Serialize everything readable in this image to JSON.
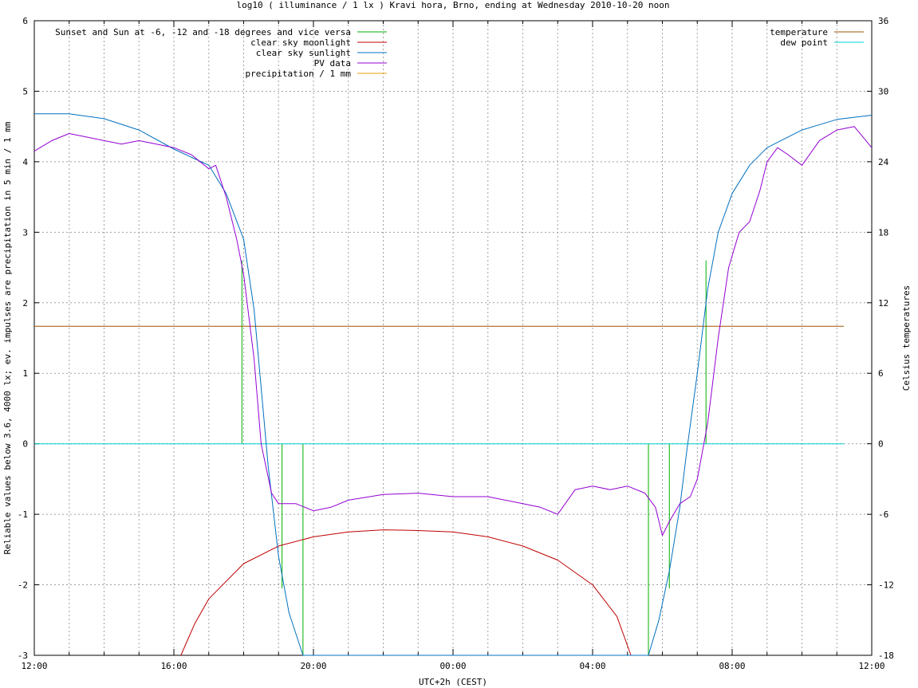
{
  "chart_data": {
    "type": "line",
    "title": "log10 ( illuminance / 1 lx ) Kravi hora, Brno, ending at Wednesday 2010-10-20 noon",
    "xlabel": "UTC+2h (CEST)",
    "ylabel_left": "Reliable values below 3.6, 4000 lx; ev. impulses are precipitation in 5 min / 1 mm",
    "ylabel_right": "Celsius temperatures",
    "x_tick_labels": [
      "12:00",
      "16:00",
      "20:00",
      "00:00",
      "04:00",
      "08:00",
      "12:00"
    ],
    "xlim_hours": [
      0,
      24
    ],
    "ylim_left": [
      -3,
      6
    ],
    "ylim_right": [
      -18,
      36
    ],
    "y_ticks_left": [
      "-3",
      "-2",
      "-1",
      "0",
      "1",
      "2",
      "3",
      "4",
      "5",
      "6"
    ],
    "y_ticks_right": [
      "-18",
      "-12",
      "-6",
      "0",
      "6",
      "12",
      "18",
      "24",
      "30",
      "36"
    ],
    "grid": true,
    "legend_left": [
      {
        "name": "Sunset and Sun at -6, -12 and -18 degrees and vice versa",
        "color": "#00b000"
      },
      {
        "name": "clear sky moonlight",
        "color": "#c00000"
      },
      {
        "name": "clear sky sunlight",
        "color": "#0070c0"
      },
      {
        "name": "PV data",
        "color": "#9400d3"
      },
      {
        "name": "precipitation / 1 mm",
        "color": "#e0a000"
      }
    ],
    "legend_right": [
      {
        "name": "temperature",
        "color": "#a05000"
      },
      {
        "name": "dew point",
        "color": "#00d0d0"
      }
    ],
    "sun_events": [
      {
        "hour": 5.95,
        "value": 2.6
      },
      {
        "hour": 7.1,
        "value": -2.05
      },
      {
        "hour": 7.7,
        "value": -3
      },
      {
        "hour": 17.6,
        "value": -3
      },
      {
        "hour": 18.2,
        "value": -2.05
      },
      {
        "hour": 19.25,
        "value": 2.6
      }
    ],
    "series": [
      {
        "name": "clear sky sunlight",
        "color": "#0070c0",
        "points": [
          [
            0,
            4.68
          ],
          [
            1,
            4.68
          ],
          [
            2,
            4.61
          ],
          [
            3,
            4.45
          ],
          [
            4,
            4.18
          ],
          [
            5,
            3.95
          ],
          [
            5.5,
            3.55
          ],
          [
            6,
            2.9
          ],
          [
            6.3,
            1.9
          ],
          [
            6.5,
            0.8
          ],
          [
            6.7,
            -0.3
          ],
          [
            7,
            -1.6
          ],
          [
            7.3,
            -2.4
          ],
          [
            7.7,
            -3
          ],
          [
            17.6,
            -3
          ],
          [
            17.9,
            -2.5
          ],
          [
            18.2,
            -1.8
          ],
          [
            18.5,
            -0.9
          ],
          [
            18.7,
            -0.1
          ],
          [
            19,
            1.0
          ],
          [
            19.3,
            2.2
          ],
          [
            19.6,
            3.0
          ],
          [
            20,
            3.55
          ],
          [
            20.5,
            3.95
          ],
          [
            21,
            4.2
          ],
          [
            22,
            4.45
          ],
          [
            23,
            4.6
          ],
          [
            24,
            4.66
          ]
        ]
      },
      {
        "name": "clear sky moonlight",
        "color": "#c00000",
        "points": [
          [
            4.2,
            -3
          ],
          [
            4.6,
            -2.55
          ],
          [
            5,
            -2.2
          ],
          [
            6,
            -1.7
          ],
          [
            7,
            -1.45
          ],
          [
            8,
            -1.32
          ],
          [
            9,
            -1.25
          ],
          [
            10,
            -1.22
          ],
          [
            11,
            -1.23
          ],
          [
            12,
            -1.25
          ],
          [
            13,
            -1.32
          ],
          [
            14,
            -1.45
          ],
          [
            15,
            -1.65
          ],
          [
            16,
            -2.0
          ],
          [
            16.7,
            -2.45
          ],
          [
            17.1,
            -3
          ]
        ]
      },
      {
        "name": "PV data",
        "color": "#9400d3",
        "points": [
          [
            0,
            4.15
          ],
          [
            0.5,
            4.3
          ],
          [
            1,
            4.4
          ],
          [
            1.5,
            4.35
          ],
          [
            2,
            4.3
          ],
          [
            2.5,
            4.25
          ],
          [
            3,
            4.3
          ],
          [
            3.5,
            4.25
          ],
          [
            4,
            4.2
          ],
          [
            4.5,
            4.1
          ],
          [
            5,
            3.9
          ],
          [
            5.2,
            3.95
          ],
          [
            5.5,
            3.5
          ],
          [
            5.8,
            2.9
          ],
          [
            6,
            2.4
          ],
          [
            6.3,
            1.2
          ],
          [
            6.5,
            0
          ],
          [
            6.8,
            -0.7
          ],
          [
            7,
            -0.85
          ],
          [
            7.5,
            -0.85
          ],
          [
            8,
            -0.95
          ],
          [
            8.5,
            -0.9
          ],
          [
            9,
            -0.8
          ],
          [
            10,
            -0.72
          ],
          [
            11,
            -0.7
          ],
          [
            12,
            -0.75
          ],
          [
            13,
            -0.75
          ],
          [
            14,
            -0.85
          ],
          [
            14.5,
            -0.9
          ],
          [
            15,
            -1.0
          ],
          [
            15.5,
            -0.65
          ],
          [
            16,
            -0.6
          ],
          [
            16.5,
            -0.65
          ],
          [
            17,
            -0.6
          ],
          [
            17.5,
            -0.7
          ],
          [
            17.8,
            -0.9
          ],
          [
            18,
            -1.3
          ],
          [
            18.2,
            -1.1
          ],
          [
            18.5,
            -0.85
          ],
          [
            18.8,
            -0.75
          ],
          [
            19,
            -0.5
          ],
          [
            19.3,
            0.3
          ],
          [
            19.6,
            1.5
          ],
          [
            19.9,
            2.5
          ],
          [
            20.2,
            3.0
          ],
          [
            20.5,
            3.15
          ],
          [
            20.8,
            3.6
          ],
          [
            21,
            4.0
          ],
          [
            21.3,
            4.2
          ],
          [
            21.6,
            4.1
          ],
          [
            22,
            3.95
          ],
          [
            22.5,
            4.3
          ],
          [
            23,
            4.45
          ],
          [
            23.5,
            4.5
          ],
          [
            24,
            4.2
          ]
        ]
      },
      {
        "name": "temperature",
        "color": "#a05000",
        "points": [
          [
            0,
            10
          ],
          [
            23.2,
            10
          ]
        ]
      },
      {
        "name": "dew point",
        "color": "#00d0d0",
        "points": [
          [
            0,
            0
          ],
          [
            23.2,
            0
          ]
        ]
      }
    ]
  }
}
